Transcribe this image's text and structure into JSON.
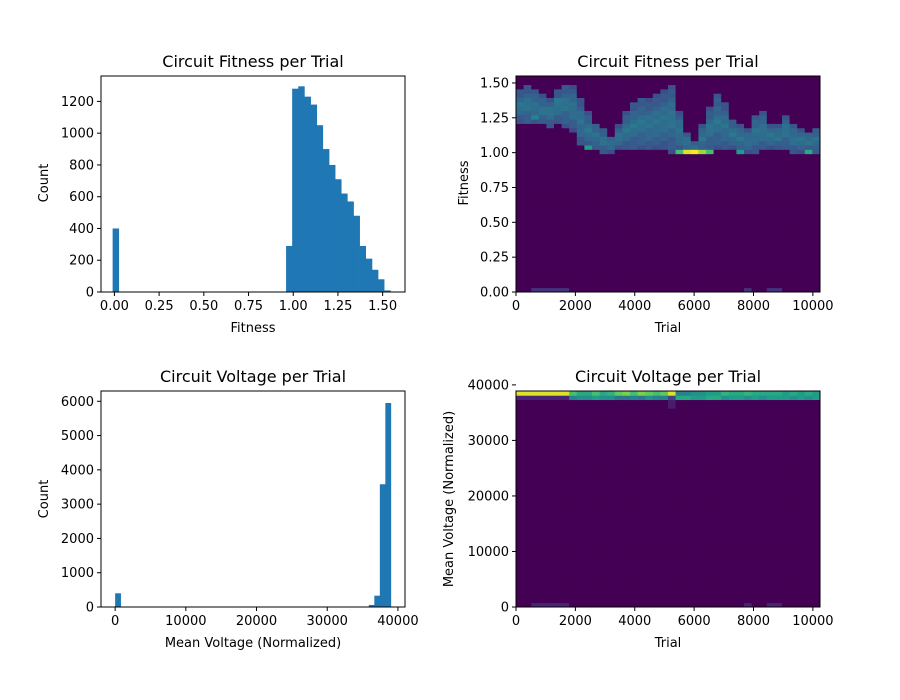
{
  "chart_data": [
    {
      "type": "bar",
      "subtype": "histogram",
      "title": "Circuit Fitness per Trial",
      "xlabel": "Fitness",
      "ylabel": "Count",
      "xlim": [
        -0.075,
        1.625
      ],
      "ylim": [
        0,
        1360
      ],
      "xticks": [
        0.0,
        0.25,
        0.5,
        0.75,
        1.0,
        1.25,
        1.5
      ],
      "xtick_labels": [
        "0.00",
        "0.25",
        "0.50",
        "0.75",
        "1.00",
        "1.25",
        "1.50"
      ],
      "yticks": [
        0,
        200,
        400,
        600,
        800,
        1000,
        1200
      ],
      "ytick_labels": [
        "0",
        "200",
        "400",
        "600",
        "800",
        "1000",
        "1200"
      ],
      "bin_width": 0.0344,
      "bins_start": [
        -0.01,
        0.96,
        0.994,
        1.028,
        1.063,
        1.097,
        1.131,
        1.166,
        1.2,
        1.234,
        1.268,
        1.303,
        1.337,
        1.371,
        1.406,
        1.44,
        1.474,
        1.509
      ],
      "values": [
        400,
        290,
        1280,
        1295,
        1230,
        1180,
        1050,
        900,
        800,
        710,
        620,
        570,
        480,
        290,
        210,
        140,
        80,
        10
      ],
      "color": "#1f77b4",
      "grid": false
    },
    {
      "type": "heatmap",
      "title": "Circuit Fitness per Trial",
      "xlabel": "Trial",
      "ylabel": "Fitness",
      "xlim": [
        0,
        10240
      ],
      "ylim": [
        0,
        1.55
      ],
      "xticks": [
        0,
        2000,
        4000,
        6000,
        8000,
        10000
      ],
      "xtick_labels": [
        "0",
        "2000",
        "4000",
        "6000",
        "8000",
        "10000"
      ],
      "yticks": [
        0.0,
        0.25,
        0.5,
        0.75,
        1.0,
        1.25,
        1.5
      ],
      "ytick_labels": [
        "0.00",
        "0.25",
        "0.50",
        "0.75",
        "1.00",
        "1.25",
        "1.50"
      ],
      "x_bins": 40,
      "y_bins": 50,
      "colormap": "viridis",
      "ridge_upper": [
        1.45,
        1.48,
        1.45,
        1.42,
        1.4,
        1.45,
        1.5,
        1.48,
        1.38,
        1.3,
        1.22,
        1.18,
        1.12,
        1.2,
        1.3,
        1.36,
        1.4,
        1.38,
        1.42,
        1.45,
        1.5,
        1.3,
        1.15,
        1.08,
        1.2,
        1.32,
        1.42,
        1.35,
        1.25,
        1.2,
        1.18,
        1.28,
        1.3,
        1.22,
        1.2,
        1.28,
        1.22,
        1.18,
        1.16,
        1.18
      ],
      "ridge_lower": [
        1.22,
        1.2,
        1.2,
        1.2,
        1.18,
        1.2,
        1.18,
        1.16,
        1.06,
        1.02,
        1.02,
        1.0,
        1.0,
        1.02,
        1.02,
        1.02,
        1.02,
        1.02,
        1.02,
        1.02,
        1.0,
        1.0,
        1.0,
        1.0,
        1.0,
        1.02,
        1.02,
        1.02,
        1.02,
        1.0,
        1.0,
        1.0,
        1.02,
        1.02,
        1.02,
        1.02,
        1.0,
        1.0,
        1.0,
        1.0
      ],
      "hotspots": [
        {
          "x_bin": 21,
          "y_bin": 32,
          "level": 0.7
        },
        {
          "x_bin": 22,
          "y_bin": 32,
          "level": 0.95
        },
        {
          "x_bin": 23,
          "y_bin": 32,
          "level": 1.0
        },
        {
          "x_bin": 24,
          "y_bin": 32,
          "level": 0.85
        },
        {
          "x_bin": 25,
          "y_bin": 32,
          "level": 0.7
        },
        {
          "x_bin": 9,
          "y_bin": 33,
          "level": 0.55
        },
        {
          "x_bin": 29,
          "y_bin": 32,
          "level": 0.55
        },
        {
          "x_bin": 38,
          "y_bin": 32,
          "level": 0.6
        },
        {
          "x_bin": 2,
          "y_bin": 40,
          "level": 0.45
        },
        {
          "x_bin": 5,
          "y_bin": 44,
          "level": 0.4
        }
      ],
      "bottom_row_bins": [
        2,
        3,
        4,
        5,
        6,
        30,
        33,
        34
      ],
      "grid": false
    },
    {
      "type": "bar",
      "subtype": "histogram",
      "title": "Circuit Voltage per Trial",
      "xlabel": "Mean Voltage (Normalized)",
      "ylabel": "Count",
      "xlim": [
        -2000,
        41000
      ],
      "ylim": [
        0,
        6300
      ],
      "xticks": [
        0,
        10000,
        20000,
        30000,
        40000
      ],
      "xtick_labels": [
        "0",
        "10000",
        "20000",
        "30000",
        "40000"
      ],
      "yticks": [
        0,
        1000,
        2000,
        3000,
        4000,
        5000,
        6000
      ],
      "ytick_labels": [
        "0",
        "1000",
        "2000",
        "3000",
        "4000",
        "5000",
        "6000"
      ],
      "bin_width": 780,
      "bins_start": [
        0,
        35100,
        35880,
        36660,
        37440,
        38220
      ],
      "values": [
        400,
        10,
        60,
        330,
        3580,
        5950
      ],
      "color": "#1f77b4",
      "grid": false
    },
    {
      "type": "heatmap",
      "title": "Circuit Voltage per Trial",
      "xlabel": "Trial",
      "ylabel": "Mean Voltage (Normalized)",
      "xlim": [
        0,
        10240
      ],
      "ylim": [
        0,
        38900
      ],
      "xticks": [
        0,
        2000,
        4000,
        6000,
        8000,
        10000
      ],
      "xtick_labels": [
        "0",
        "2000",
        "4000",
        "6000",
        "8000",
        "10000"
      ],
      "yticks": [
        0,
        10000,
        20000,
        30000,
        40000
      ],
      "ytick_labels": [
        "0",
        "10000",
        "20000",
        "30000",
        "40000"
      ],
      "x_bins": 40,
      "y_bins": 50,
      "colormap": "viridis",
      "top_row_levels": [
        0.95,
        0.95,
        0.95,
        0.95,
        0.95,
        0.95,
        0.95,
        0.7,
        0.6,
        0.6,
        0.7,
        0.6,
        0.65,
        0.75,
        0.8,
        0.7,
        0.8,
        0.75,
        0.7,
        0.75,
        0.95,
        0.45,
        0.45,
        0.5,
        0.5,
        0.55,
        0.55,
        0.65,
        0.6,
        0.6,
        0.65,
        0.6,
        0.6,
        0.6,
        0.6,
        0.55,
        0.6,
        0.55,
        0.6,
        0.55
      ],
      "second_row_levels": [
        0.1,
        0.1,
        0.1,
        0.1,
        0.1,
        0.1,
        0.1,
        0.45,
        0.5,
        0.5,
        0.55,
        0.5,
        0.5,
        0.4,
        0.4,
        0.45,
        0.4,
        0.5,
        0.45,
        0.45,
        0.2,
        0.6,
        0.6,
        0.55,
        0.55,
        0.6,
        0.6,
        0.5,
        0.55,
        0.55,
        0.5,
        0.55,
        0.5,
        0.55,
        0.55,
        0.55,
        0.5,
        0.55,
        0.5,
        0.55
      ],
      "grid": false
    }
  ]
}
